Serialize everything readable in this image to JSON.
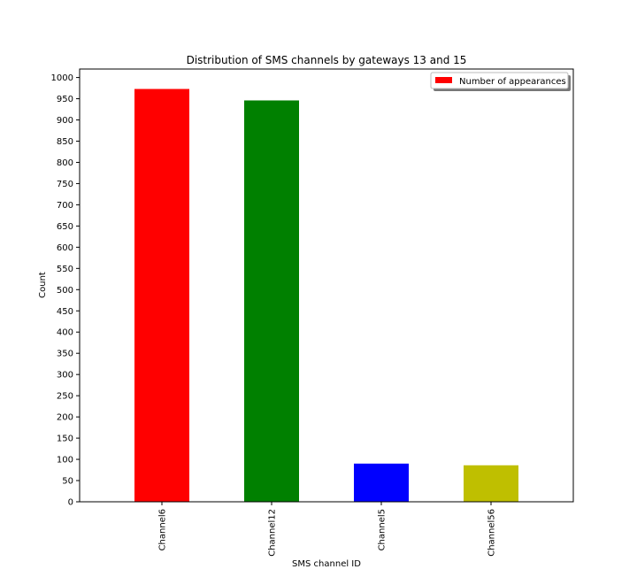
{
  "chart_data": {
    "type": "bar",
    "title": "Distribution of SMS channels by gateways 13 and 15",
    "xlabel": "SMS channel ID",
    "ylabel": "Count",
    "categories": [
      "Channel6",
      "Channel12",
      "Channel5",
      "Channel56"
    ],
    "series": [
      {
        "name": "Number of appearances",
        "values": [
          973,
          946,
          90,
          86
        ]
      }
    ],
    "bar_colors": [
      "#ff0000",
      "#008000",
      "#0000ff",
      "#bfbf00"
    ],
    "ylim": [
      0,
      1020
    ],
    "yticks": [
      0,
      50,
      100,
      150,
      200,
      250,
      300,
      350,
      400,
      450,
      500,
      550,
      600,
      650,
      700,
      750,
      800,
      850,
      900,
      950,
      1000
    ],
    "grid": false,
    "legend_position": "top-right"
  }
}
